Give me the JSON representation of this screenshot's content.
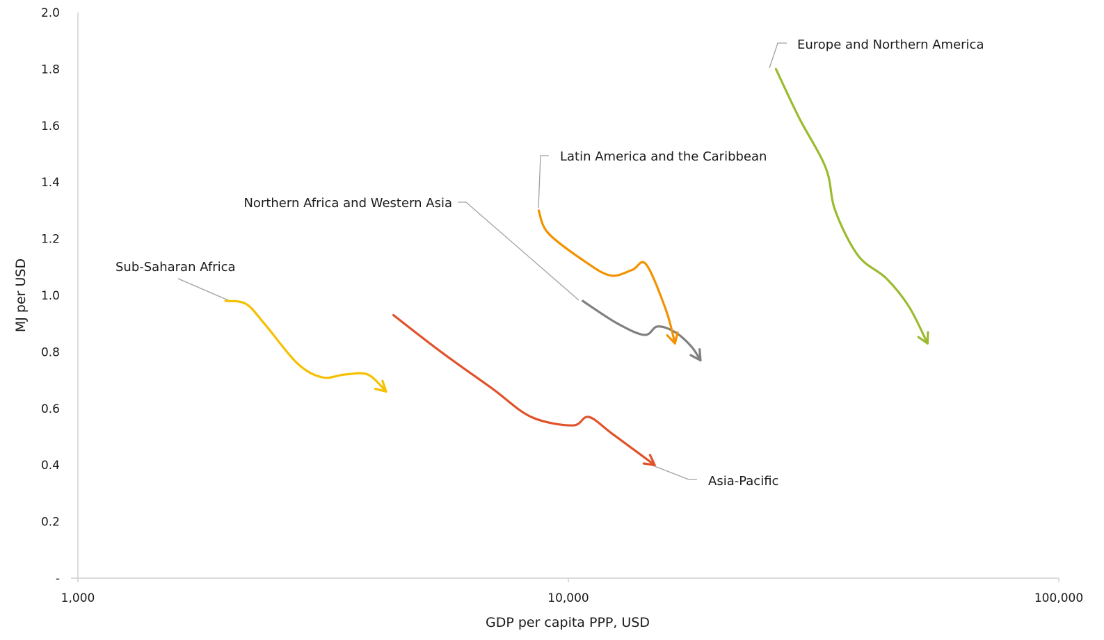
{
  "chart_data": {
    "type": "line",
    "title": "",
    "xlabel": "GDP per capita PPP, USD",
    "ylabel": "MJ per USD",
    "x_scale": "log",
    "xlim": [
      1000,
      100000
    ],
    "ylim": [
      0,
      2.0
    ],
    "x_ticks": [
      1000,
      10000,
      100000
    ],
    "x_tick_labels": [
      "1,000",
      "10,000",
      "100,000"
    ],
    "y_ticks": [
      0,
      0.2,
      0.4,
      0.6,
      0.8,
      1.0,
      1.2,
      1.4,
      1.6,
      1.8,
      2.0
    ],
    "y_tick_labels": [
      "-",
      "0.2",
      "0.4",
      "0.6",
      "0.8",
      "1.0",
      "1.2",
      "1.4",
      "1.6",
      "1.8",
      "2.0"
    ],
    "grid": false,
    "legend": "none",
    "series": [
      {
        "name": "Sub-Saharan Africa",
        "color": "#f5c000",
        "x": [
          2000,
          2200,
          2400,
          2800,
          3150,
          3500,
          3900,
          4250
        ],
        "y": [
          0.98,
          0.97,
          0.9,
          0.76,
          0.71,
          0.72,
          0.72,
          0.66
        ]
      },
      {
        "name": "Asia-Pacific",
        "color": "#e0522a",
        "x": [
          4400,
          5500,
          7000,
          8400,
          10200,
          11000,
          12300,
          15000
        ],
        "y": [
          0.93,
          0.8,
          0.67,
          0.57,
          0.54,
          0.57,
          0.51,
          0.4
        ]
      },
      {
        "name": "Northern Africa and Western Asia",
        "color": "#808080",
        "x": [
          10700,
          12600,
          14300,
          15200,
          16500,
          17800,
          18600
        ],
        "y": [
          0.98,
          0.9,
          0.86,
          0.89,
          0.87,
          0.82,
          0.77
        ]
      },
      {
        "name": "Latin America and the Caribbean",
        "color": "#f39200",
        "x": [
          8700,
          9100,
          10800,
          12200,
          13500,
          14400,
          15800,
          16500
        ],
        "y": [
          1.3,
          1.22,
          1.12,
          1.07,
          1.09,
          1.11,
          0.95,
          0.83
        ]
      },
      {
        "name": "Europe and Northern America",
        "color": "#9bbb2e",
        "x": [
          26500,
          29500,
          33500,
          35000,
          39000,
          44500,
          49500,
          54000
        ],
        "y": [
          1.8,
          1.63,
          1.45,
          1.3,
          1.14,
          1.06,
          0.96,
          0.83
        ]
      }
    ]
  }
}
